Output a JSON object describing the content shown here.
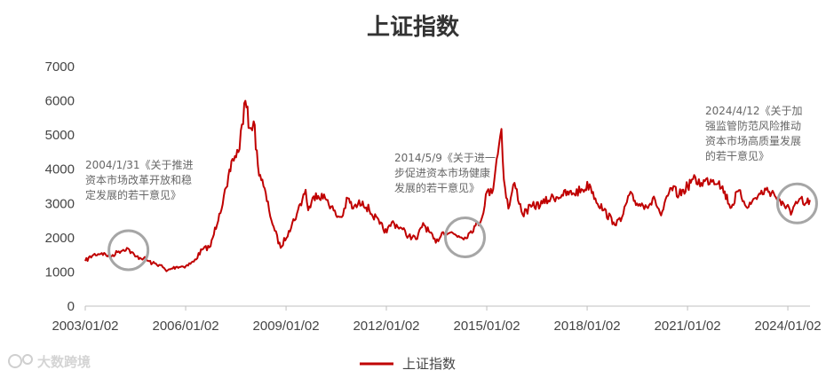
{
  "chart_data": {
    "type": "line",
    "title": "上证指数",
    "xlabel": "",
    "ylabel": "",
    "ylim": [
      0,
      7000
    ],
    "xlim": [
      "2003/01/02",
      "2024/08/31"
    ],
    "y_ticks": [
      "0",
      "1000",
      "2000",
      "3000",
      "4000",
      "5000",
      "6000",
      "7000"
    ],
    "x_ticks": [
      "2003/01/02",
      "2006/01/02",
      "2009/01/02",
      "2012/01/02",
      "2015/01/02",
      "2018/01/02",
      "2021/01/02",
      "2024/01/02"
    ],
    "grid": false,
    "legend": "bottom",
    "color": "#c00000",
    "series": [
      {
        "name": "上证指数",
        "x": [
          "2003/01/02",
          "2003/04/01",
          "2003/07/01",
          "2003/10/01",
          "2004/01/02",
          "2004/04/01",
          "2004/07/01",
          "2004/10/01",
          "2005/01/04",
          "2005/04/01",
          "2005/06/06",
          "2005/08/01",
          "2005/10/01",
          "2006/01/04",
          "2006/04/01",
          "2006/07/01",
          "2006/10/01",
          "2007/01/04",
          "2007/04/01",
          "2007/05/29",
          "2007/08/01",
          "2007/10/16",
          "2007/12/01",
          "2008/01/14",
          "2008/03/01",
          "2008/05/01",
          "2008/07/01",
          "2008/09/01",
          "2008/11/04",
          "2009/02/01",
          "2009/05/01",
          "2009/08/04",
          "2009/09/01",
          "2009/11/24",
          "2010/04/01",
          "2010/07/02",
          "2010/09/01",
          "2010/11/08",
          "2011/01/04",
          "2011/04/18",
          "2011/07/01",
          "2011/10/21",
          "2012/01/06",
          "2012/03/01",
          "2012/06/01",
          "2012/09/01",
          "2012/12/03",
          "2013/02/06",
          "2013/06/25",
          "2013/09/01",
          "2013/12/01",
          "2014/03/01",
          "2014/05/09",
          "2014/07/01",
          "2014/09/01",
          "2014/11/01",
          "2015/01/05",
          "2015/03/01",
          "2015/04/20",
          "2015/06/12",
          "2015/07/08",
          "2015/08/26",
          "2015/11/01",
          "2016/01/28",
          "2016/05/01",
          "2016/09/01",
          "2016/12/01",
          "2017/04/01",
          "2017/08/01",
          "2017/11/14",
          "2018/01/29",
          "2018/04/01",
          "2018/07/01",
          "2018/10/18",
          "2019/01/04",
          "2019/04/08",
          "2019/07/01",
          "2019/10/01",
          "2020/01/14",
          "2020/03/19",
          "2020/07/09",
          "2020/10/01",
          "2021/01/04",
          "2021/02/18",
          "2021/06/01",
          "2021/09/13",
          "2021/12/13",
          "2022/04/26",
          "2022/07/05",
          "2022/10/31",
          "2023/01/03",
          "2023/05/09",
          "2023/08/01",
          "2023/10/23",
          "2024/01/02",
          "2024/02/05",
          "2024/04/12",
          "2024/05/20",
          "2024/07/01",
          "2024/08/30"
        ],
        "values": [
          1320,
          1500,
          1550,
          1450,
          1600,
          1700,
          1450,
          1400,
          1250,
          1200,
          1020,
          1100,
          1150,
          1170,
          1300,
          1650,
          1750,
          2700,
          3500,
          4300,
          4500,
          6000,
          5200,
          5400,
          4100,
          3500,
          2800,
          2200,
          1700,
          2200,
          2700,
          3400,
          2800,
          3300,
          3100,
          2650,
          2600,
          3150,
          2850,
          3060,
          2800,
          2400,
          2150,
          2450,
          2300,
          2050,
          1960,
          2430,
          1850,
          2150,
          2150,
          2050,
          2010,
          2150,
          2350,
          2500,
          3350,
          3300,
          4300,
          5178,
          3700,
          2850,
          3600,
          2680,
          2900,
          3000,
          3150,
          3250,
          3300,
          3400,
          3560,
          3150,
          2800,
          2450,
          2480,
          3250,
          3000,
          2950,
          3100,
          2650,
          3450,
          3250,
          3500,
          3700,
          3600,
          3700,
          3650,
          2880,
          3350,
          2900,
          3150,
          3400,
          3300,
          2950,
          2960,
          2670,
          3000,
          3150,
          2950,
          3100
        ]
      }
    ],
    "annotations": [
      {
        "date": "2004/01/31",
        "lines": [
          "2004/1/31《关于推进",
          "资本市场改革开放和稳",
          "定发展的若干意见》"
        ]
      },
      {
        "date": "2014/05/09",
        "lines": [
          "2014/5/9《关于进一",
          "步促进资本市场健康",
          "发展的若干意见》"
        ]
      },
      {
        "date": "2024/04/12",
        "lines": [
          "2024/4/12《关于加",
          "强监管防范风险推动",
          "资本市场高质量发展",
          "的若干意见》"
        ]
      }
    ]
  },
  "watermark": {
    "text": "大数跨境",
    "icon": "dashu-logo-icon"
  }
}
